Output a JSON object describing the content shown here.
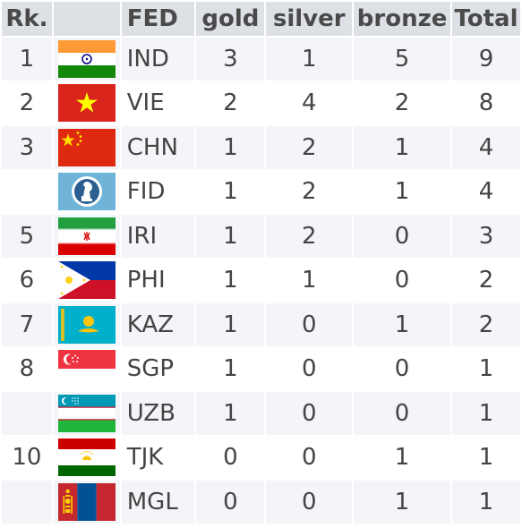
{
  "table": {
    "headers": {
      "rank": "Rk.",
      "flag": "",
      "fed": "FED",
      "gold": "gold",
      "silver": "silver",
      "bronze": "bronze",
      "total": "Total"
    },
    "rows": [
      {
        "rank": "1",
        "fed": "IND",
        "flag": "india-flag-icon",
        "gold": "3",
        "silver": "1",
        "bronze": "5",
        "total": "9"
      },
      {
        "rank": "2",
        "fed": "VIE",
        "flag": "vietnam-flag-icon",
        "gold": "2",
        "silver": "4",
        "bronze": "2",
        "total": "8"
      },
      {
        "rank": "3",
        "fed": "CHN",
        "flag": "china-flag-icon",
        "gold": "1",
        "silver": "2",
        "bronze": "1",
        "total": "4"
      },
      {
        "rank": "",
        "fed": "FID",
        "flag": "fide-flag-icon",
        "gold": "1",
        "silver": "2",
        "bronze": "1",
        "total": "4"
      },
      {
        "rank": "5",
        "fed": "IRI",
        "flag": "iran-flag-icon",
        "gold": "1",
        "silver": "2",
        "bronze": "0",
        "total": "3"
      },
      {
        "rank": "6",
        "fed": "PHI",
        "flag": "philippines-flag-icon",
        "gold": "1",
        "silver": "1",
        "bronze": "0",
        "total": "2"
      },
      {
        "rank": "7",
        "fed": "KAZ",
        "flag": "kazakhstan-flag-icon",
        "gold": "1",
        "silver": "0",
        "bronze": "1",
        "total": "2"
      },
      {
        "rank": "8",
        "fed": "SGP",
        "flag": "singapore-flag-icon",
        "gold": "1",
        "silver": "0",
        "bronze": "0",
        "total": "1"
      },
      {
        "rank": "",
        "fed": "UZB",
        "flag": "uzbekistan-flag-icon",
        "gold": "1",
        "silver": "0",
        "bronze": "0",
        "total": "1"
      },
      {
        "rank": "10",
        "fed": "TJK",
        "flag": "tajikistan-flag-icon",
        "gold": "0",
        "silver": "0",
        "bronze": "1",
        "total": "1"
      },
      {
        "rank": "",
        "fed": "MGL",
        "flag": "mongolia-flag-icon",
        "gold": "0",
        "silver": "0",
        "bronze": "1",
        "total": "1"
      }
    ]
  },
  "colors": {
    "header_bg": "#dde1e6",
    "row_alt_bg": "#f4f5f8",
    "text": "#444444"
  }
}
